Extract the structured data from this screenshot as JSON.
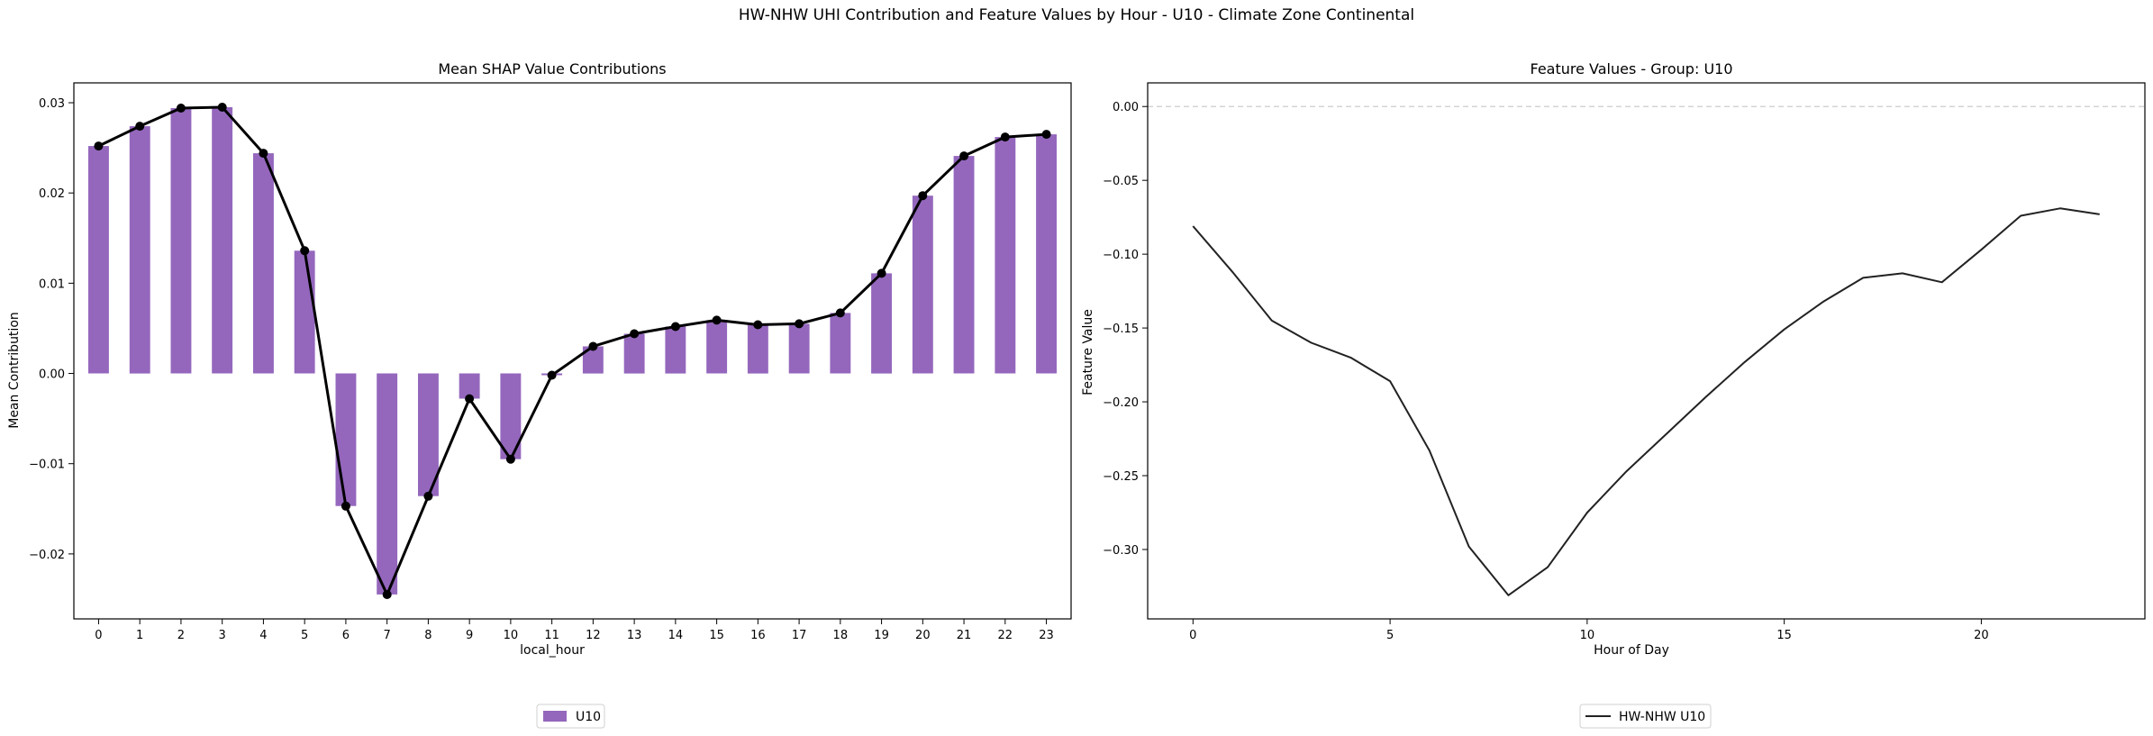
{
  "suptitle": "HW-NHW UHI Contribution and Feature Values by Hour - U10 - Climate Zone Continental",
  "chart_data": [
    {
      "type": "bar",
      "title": "Mean SHAP Value Contributions",
      "xlabel": "local_hour",
      "ylabel": "Mean Contribution",
      "categories": [
        "0",
        "1",
        "2",
        "3",
        "4",
        "5",
        "6",
        "7",
        "8",
        "9",
        "10",
        "11",
        "12",
        "13",
        "14",
        "15",
        "16",
        "17",
        "18",
        "19",
        "20",
        "21",
        "22",
        "23"
      ],
      "series": [
        {
          "name": "U10",
          "type": "bar",
          "color": "#9467bd",
          "values": [
            0.0252,
            0.0274,
            0.0294,
            0.0295,
            0.0244,
            0.0136,
            -0.0147,
            -0.0245,
            -0.0136,
            -0.0028,
            -0.0095,
            -0.0002,
            0.003,
            0.0044,
            0.0052,
            0.0059,
            0.0054,
            0.0055,
            0.0067,
            0.0111,
            0.0197,
            0.0241,
            0.0262,
            0.0265
          ]
        },
        {
          "type": "line",
          "color": "#000000",
          "marker": "circle",
          "values": [
            0.0252,
            0.0274,
            0.0294,
            0.0295,
            0.0244,
            0.0136,
            -0.0147,
            -0.0245,
            -0.0136,
            -0.0028,
            -0.0095,
            -0.0002,
            0.003,
            0.0044,
            0.0052,
            0.0059,
            0.0054,
            0.0055,
            0.0067,
            0.0111,
            0.0197,
            0.0241,
            0.0262,
            0.0265
          ]
        }
      ],
      "ylim": [
        -0.0272,
        0.0322
      ],
      "yticks": [
        -0.02,
        -0.01,
        0.0,
        0.01,
        0.02,
        0.03
      ],
      "ytick_labels": [
        "−0.02",
        "−0.01",
        "0.00",
        "0.01",
        "0.02",
        "0.03"
      ],
      "grid": false,
      "legend": "bottom-center"
    },
    {
      "type": "line",
      "title": "Feature Values - Group: U10",
      "xlabel": "Hour of Day",
      "ylabel": "Feature Value",
      "x": [
        0,
        1,
        2,
        3,
        4,
        5,
        6,
        7,
        8,
        9,
        10,
        11,
        12,
        13,
        14,
        15,
        16,
        17,
        18,
        19,
        20,
        21,
        22,
        23
      ],
      "series": [
        {
          "name": "HW-NHW U10",
          "color": "#222222",
          "values": [
            -0.081,
            -0.112,
            -0.145,
            -0.16,
            -0.17,
            -0.186,
            -0.233,
            -0.298,
            -0.331,
            -0.312,
            -0.275,
            -0.247,
            -0.222,
            -0.197,
            -0.173,
            -0.151,
            -0.132,
            -0.116,
            -0.113,
            -0.119,
            -0.097,
            -0.074,
            -0.069,
            -0.073
          ]
        }
      ],
      "xlim": [
        -1.15,
        24.15
      ],
      "ylim": [
        -0.347,
        0.016
      ],
      "xticks": [
        0,
        5,
        10,
        15,
        20
      ],
      "yticks": [
        -0.3,
        -0.25,
        -0.2,
        -0.15,
        -0.1,
        -0.05,
        0.0
      ],
      "ytick_labels": [
        "−0.30",
        "−0.25",
        "−0.20",
        "−0.15",
        "−0.10",
        "−0.05",
        "0.00"
      ],
      "reference_line": {
        "y": 0,
        "style": "dashed",
        "color": "#cccccc"
      },
      "grid": false,
      "legend": "bottom-center"
    }
  ]
}
